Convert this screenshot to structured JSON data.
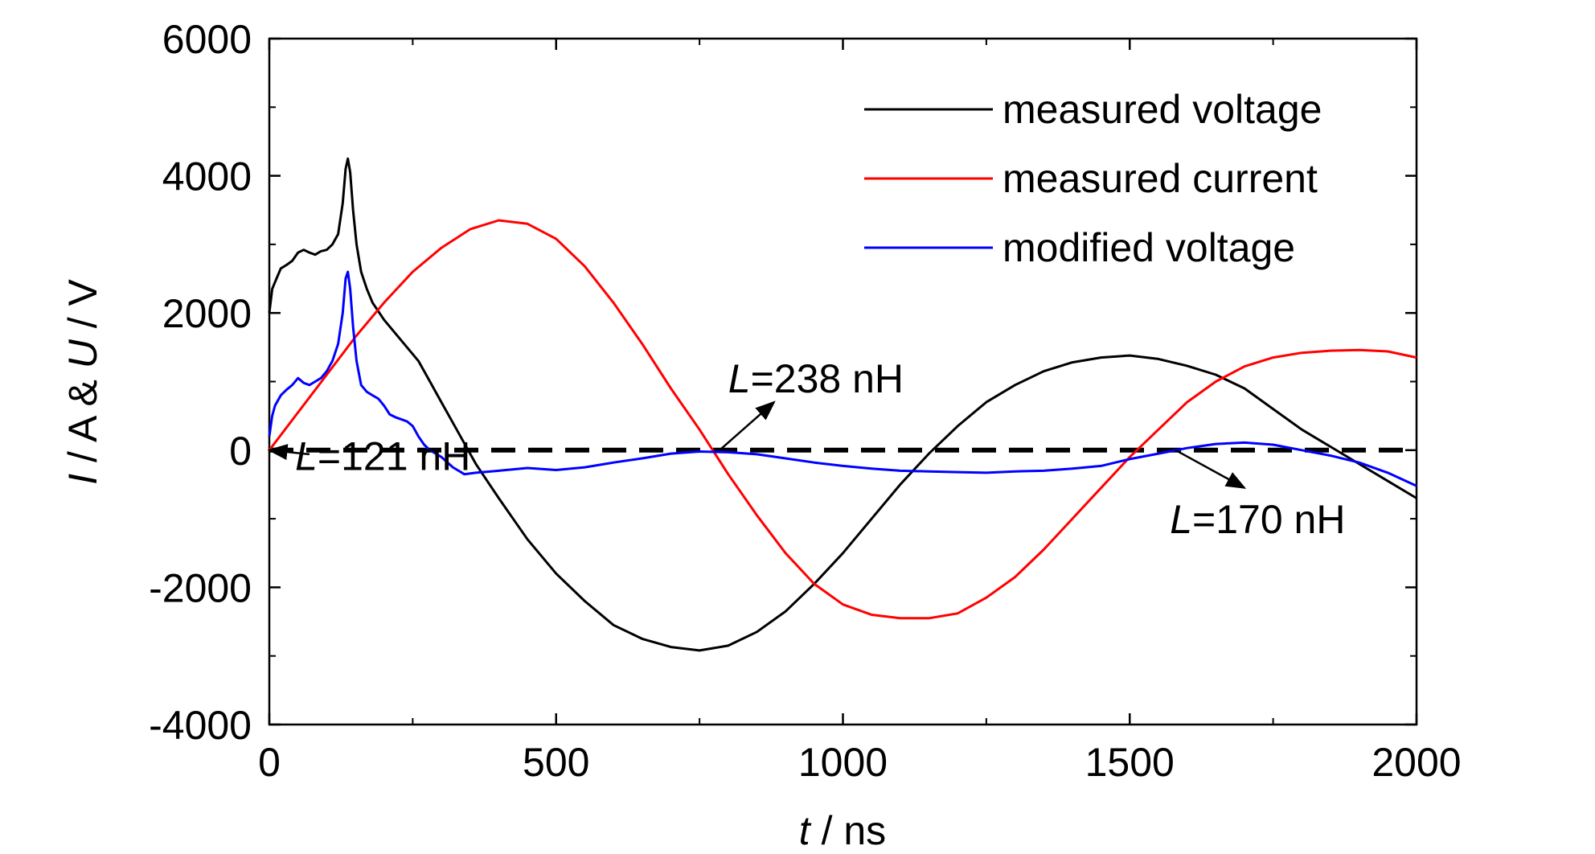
{
  "chart_data": {
    "type": "line",
    "xlabel": {
      "var": "t",
      "unit": " / ns"
    },
    "ylabel": {
      "var1": "I",
      "mid1": " / A & ",
      "var2": "U",
      "mid2": " / V"
    },
    "xlim": [
      0,
      2000
    ],
    "ylim": [
      -4000,
      6000
    ],
    "xticks": [
      0,
      500,
      1000,
      1500,
      2000
    ],
    "xtick_labels": [
      "0",
      "500",
      "1000",
      "1500",
      "2000"
    ],
    "yticks": [
      -4000,
      -2000,
      0,
      2000,
      4000,
      6000
    ],
    "ytick_labels": [
      "-4000",
      "-2000",
      "0",
      "2000",
      "4000",
      "6000"
    ],
    "grid": false,
    "legend_position": "top-right",
    "series": [
      {
        "name": "measured voltage",
        "color": "#000000",
        "points": [
          [
            0,
            2000
          ],
          [
            5,
            2350
          ],
          [
            10,
            2450
          ],
          [
            20,
            2650
          ],
          [
            30,
            2700
          ],
          [
            40,
            2760
          ],
          [
            50,
            2880
          ],
          [
            60,
            2920
          ],
          [
            70,
            2880
          ],
          [
            80,
            2850
          ],
          [
            90,
            2900
          ],
          [
            100,
            2920
          ],
          [
            110,
            3000
          ],
          [
            120,
            3150
          ],
          [
            128,
            3600
          ],
          [
            133,
            4100
          ],
          [
            137,
            4250
          ],
          [
            141,
            4050
          ],
          [
            146,
            3500
          ],
          [
            152,
            3000
          ],
          [
            160,
            2600
          ],
          [
            170,
            2350
          ],
          [
            180,
            2150
          ],
          [
            200,
            1900
          ],
          [
            220,
            1700
          ],
          [
            240,
            1500
          ],
          [
            260,
            1300
          ],
          [
            280,
            1000
          ],
          [
            300,
            700
          ],
          [
            320,
            400
          ],
          [
            340,
            100
          ],
          [
            360,
            -200
          ],
          [
            380,
            -450
          ],
          [
            400,
            -700
          ],
          [
            450,
            -1300
          ],
          [
            500,
            -1800
          ],
          [
            550,
            -2200
          ],
          [
            600,
            -2550
          ],
          [
            650,
            -2750
          ],
          [
            700,
            -2870
          ],
          [
            750,
            -2920
          ],
          [
            800,
            -2850
          ],
          [
            850,
            -2650
          ],
          [
            900,
            -2350
          ],
          [
            950,
            -1950
          ],
          [
            1000,
            -1500
          ],
          [
            1050,
            -1000
          ],
          [
            1100,
            -500
          ],
          [
            1150,
            -50
          ],
          [
            1200,
            350
          ],
          [
            1250,
            700
          ],
          [
            1300,
            950
          ],
          [
            1350,
            1150
          ],
          [
            1400,
            1280
          ],
          [
            1450,
            1350
          ],
          [
            1500,
            1380
          ],
          [
            1550,
            1330
          ],
          [
            1600,
            1230
          ],
          [
            1650,
            1100
          ],
          [
            1700,
            900
          ],
          [
            1750,
            600
          ],
          [
            1800,
            300
          ],
          [
            1850,
            50
          ],
          [
            1900,
            -200
          ],
          [
            1950,
            -450
          ],
          [
            2000,
            -700
          ]
        ]
      },
      {
        "name": "measured current",
        "color": "#ff0000",
        "points": [
          [
            0,
            0
          ],
          [
            50,
            550
          ],
          [
            100,
            1100
          ],
          [
            150,
            1650
          ],
          [
            200,
            2150
          ],
          [
            250,
            2600
          ],
          [
            300,
            2950
          ],
          [
            350,
            3220
          ],
          [
            400,
            3350
          ],
          [
            450,
            3300
          ],
          [
            500,
            3080
          ],
          [
            550,
            2680
          ],
          [
            600,
            2150
          ],
          [
            650,
            1550
          ],
          [
            700,
            900
          ],
          [
            750,
            300
          ],
          [
            800,
            -350
          ],
          [
            850,
            -950
          ],
          [
            900,
            -1500
          ],
          [
            950,
            -1950
          ],
          [
            1000,
            -2250
          ],
          [
            1050,
            -2400
          ],
          [
            1100,
            -2450
          ],
          [
            1150,
            -2450
          ],
          [
            1200,
            -2380
          ],
          [
            1250,
            -2150
          ],
          [
            1300,
            -1850
          ],
          [
            1350,
            -1450
          ],
          [
            1400,
            -1000
          ],
          [
            1450,
            -550
          ],
          [
            1500,
            -100
          ],
          [
            1550,
            300
          ],
          [
            1600,
            700
          ],
          [
            1650,
            1000
          ],
          [
            1700,
            1220
          ],
          [
            1750,
            1350
          ],
          [
            1800,
            1420
          ],
          [
            1850,
            1450
          ],
          [
            1900,
            1460
          ],
          [
            1950,
            1440
          ],
          [
            2000,
            1350
          ]
        ]
      },
      {
        "name": "modified voltage",
        "color": "#0000ff",
        "points": [
          [
            0,
            200
          ],
          [
            5,
            500
          ],
          [
            10,
            650
          ],
          [
            20,
            800
          ],
          [
            30,
            880
          ],
          [
            40,
            950
          ],
          [
            50,
            1050
          ],
          [
            60,
            980
          ],
          [
            70,
            950
          ],
          [
            80,
            1000
          ],
          [
            90,
            1050
          ],
          [
            100,
            1150
          ],
          [
            110,
            1300
          ],
          [
            120,
            1550
          ],
          [
            128,
            2000
          ],
          [
            133,
            2500
          ],
          [
            137,
            2600
          ],
          [
            141,
            2350
          ],
          [
            146,
            1800
          ],
          [
            152,
            1300
          ],
          [
            160,
            950
          ],
          [
            170,
            850
          ],
          [
            180,
            800
          ],
          [
            190,
            750
          ],
          [
            200,
            650
          ],
          [
            210,
            520
          ],
          [
            220,
            480
          ],
          [
            230,
            450
          ],
          [
            240,
            420
          ],
          [
            250,
            350
          ],
          [
            260,
            200
          ],
          [
            270,
            80
          ],
          [
            280,
            0
          ],
          [
            300,
            -100
          ],
          [
            320,
            -250
          ],
          [
            340,
            -350
          ],
          [
            360,
            -330
          ],
          [
            400,
            -300
          ],
          [
            450,
            -260
          ],
          [
            500,
            -290
          ],
          [
            550,
            -250
          ],
          [
            600,
            -180
          ],
          [
            650,
            -120
          ],
          [
            700,
            -50
          ],
          [
            750,
            -20
          ],
          [
            800,
            -30
          ],
          [
            850,
            -60
          ],
          [
            900,
            -120
          ],
          [
            950,
            -180
          ],
          [
            1000,
            -230
          ],
          [
            1050,
            -270
          ],
          [
            1100,
            -300
          ],
          [
            1150,
            -310
          ],
          [
            1200,
            -320
          ],
          [
            1250,
            -330
          ],
          [
            1300,
            -310
          ],
          [
            1350,
            -300
          ],
          [
            1400,
            -270
          ],
          [
            1450,
            -230
          ],
          [
            1500,
            -130
          ],
          [
            1550,
            -50
          ],
          [
            1600,
            30
          ],
          [
            1650,
            90
          ],
          [
            1700,
            110
          ],
          [
            1750,
            80
          ],
          [
            1800,
            0
          ],
          [
            1850,
            -80
          ],
          [
            1900,
            -180
          ],
          [
            1950,
            -330
          ],
          [
            2000,
            -520
          ]
        ]
      }
    ],
    "zero_line": {
      "style": "dashed",
      "color": "#000000",
      "y": 0
    },
    "annotations": [
      {
        "var": "L",
        "text": "=121 nH",
        "arrow_tip": [
          0,
          0
        ],
        "arrow_from": [
          70,
          -60
        ],
        "label_at": [
          45,
          -80
        ]
      },
      {
        "var": "L",
        "text": "=238 nH",
        "arrow_tip": [
          880,
          700
        ],
        "arrow_from": [
          785,
          0
        ],
        "label_at": [
          800,
          1050
        ]
      },
      {
        "var": "L",
        "text": "=170 nH",
        "arrow_tip": [
          1700,
          -550
        ],
        "arrow_from": [
          1580,
          0
        ],
        "label_at": [
          1570,
          -1000
        ]
      }
    ]
  }
}
